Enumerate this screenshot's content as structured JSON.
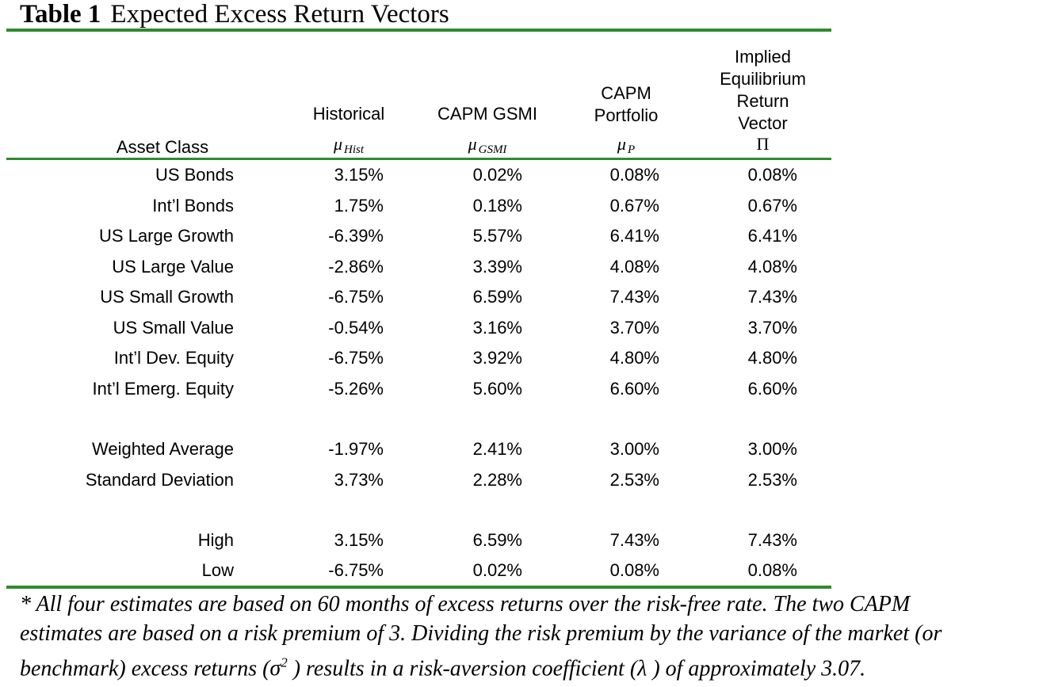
{
  "title": {
    "number": "Table 1",
    "text": "Expected Excess Return Vectors"
  },
  "headers": {
    "asset_class": "Asset Class",
    "historical": "Historical",
    "capm_gsmi": "CAPM GSMI",
    "capm_portfolio_1": "CAPM",
    "capm_portfolio_2": "Portfolio",
    "implied_1": "Implied",
    "implied_2": "Equilibrium",
    "implied_3": "Return",
    "implied_4": "Vector"
  },
  "symbols": {
    "hist_base": "μ",
    "hist_sub": "Hist",
    "gsmi_base": "μ",
    "gsmi_sub": "GSMI",
    "p_base": "μ",
    "p_sub": "P",
    "pi": "Π"
  },
  "rows": [
    {
      "label": "US Bonds",
      "hist": "3.15%",
      "gsmi": "0.02%",
      "p": "0.08%",
      "pi": "0.08%"
    },
    {
      "label": "Int’l Bonds",
      "hist": "1.75%",
      "gsmi": "0.18%",
      "p": "0.67%",
      "pi": "0.67%"
    },
    {
      "label": "US Large Growth",
      "hist": "-6.39%",
      "gsmi": "5.57%",
      "p": "6.41%",
      "pi": "6.41%"
    },
    {
      "label": "US Large Value",
      "hist": "-2.86%",
      "gsmi": "3.39%",
      "p": "4.08%",
      "pi": "4.08%"
    },
    {
      "label": "US Small Growth",
      "hist": "-6.75%",
      "gsmi": "6.59%",
      "p": "7.43%",
      "pi": "7.43%"
    },
    {
      "label": "US Small Value",
      "hist": "-0.54%",
      "gsmi": "3.16%",
      "p": "3.70%",
      "pi": "3.70%"
    },
    {
      "label": "Int’l Dev. Equity",
      "hist": "-6.75%",
      "gsmi": "3.92%",
      "p": "4.80%",
      "pi": "4.80%"
    },
    {
      "label": "Int’l Emerg. Equity",
      "hist": "-5.26%",
      "gsmi": "5.60%",
      "p": "6.60%",
      "pi": "6.60%"
    }
  ],
  "summary": [
    {
      "label": "Weighted Average",
      "hist": "-1.97%",
      "gsmi": "2.41%",
      "p": "3.00%",
      "pi": "3.00%"
    },
    {
      "label": "Standard Deviation",
      "hist": "3.73%",
      "gsmi": "2.28%",
      "p": "2.53%",
      "pi": "2.53%"
    }
  ],
  "extremes": [
    {
      "label": "High",
      "hist": "3.15%",
      "gsmi": "6.59%",
      "p": "7.43%",
      "pi": "7.43%"
    },
    {
      "label": "Low",
      "hist": "-6.75%",
      "gsmi": "0.02%",
      "p": "0.08%",
      "pi": "0.08%"
    }
  ],
  "footnote": {
    "line1": "* All four estimates are based on 60 months of excess returns over the risk-free rate.  The two CAPM",
    "line2": "estimates are based on a risk premium of 3.  Dividing the risk premium by the variance of the market (or",
    "line3_a": "benchmark) excess returns (",
    "sigma": "σ",
    "sigma_exp": "2",
    "line3_b": " ) results in a risk-aversion coefficient (",
    "lambda": "λ",
    "line3_c": " ) of approximately 3.07."
  },
  "colors": {
    "rule": "#2e8b2e"
  }
}
